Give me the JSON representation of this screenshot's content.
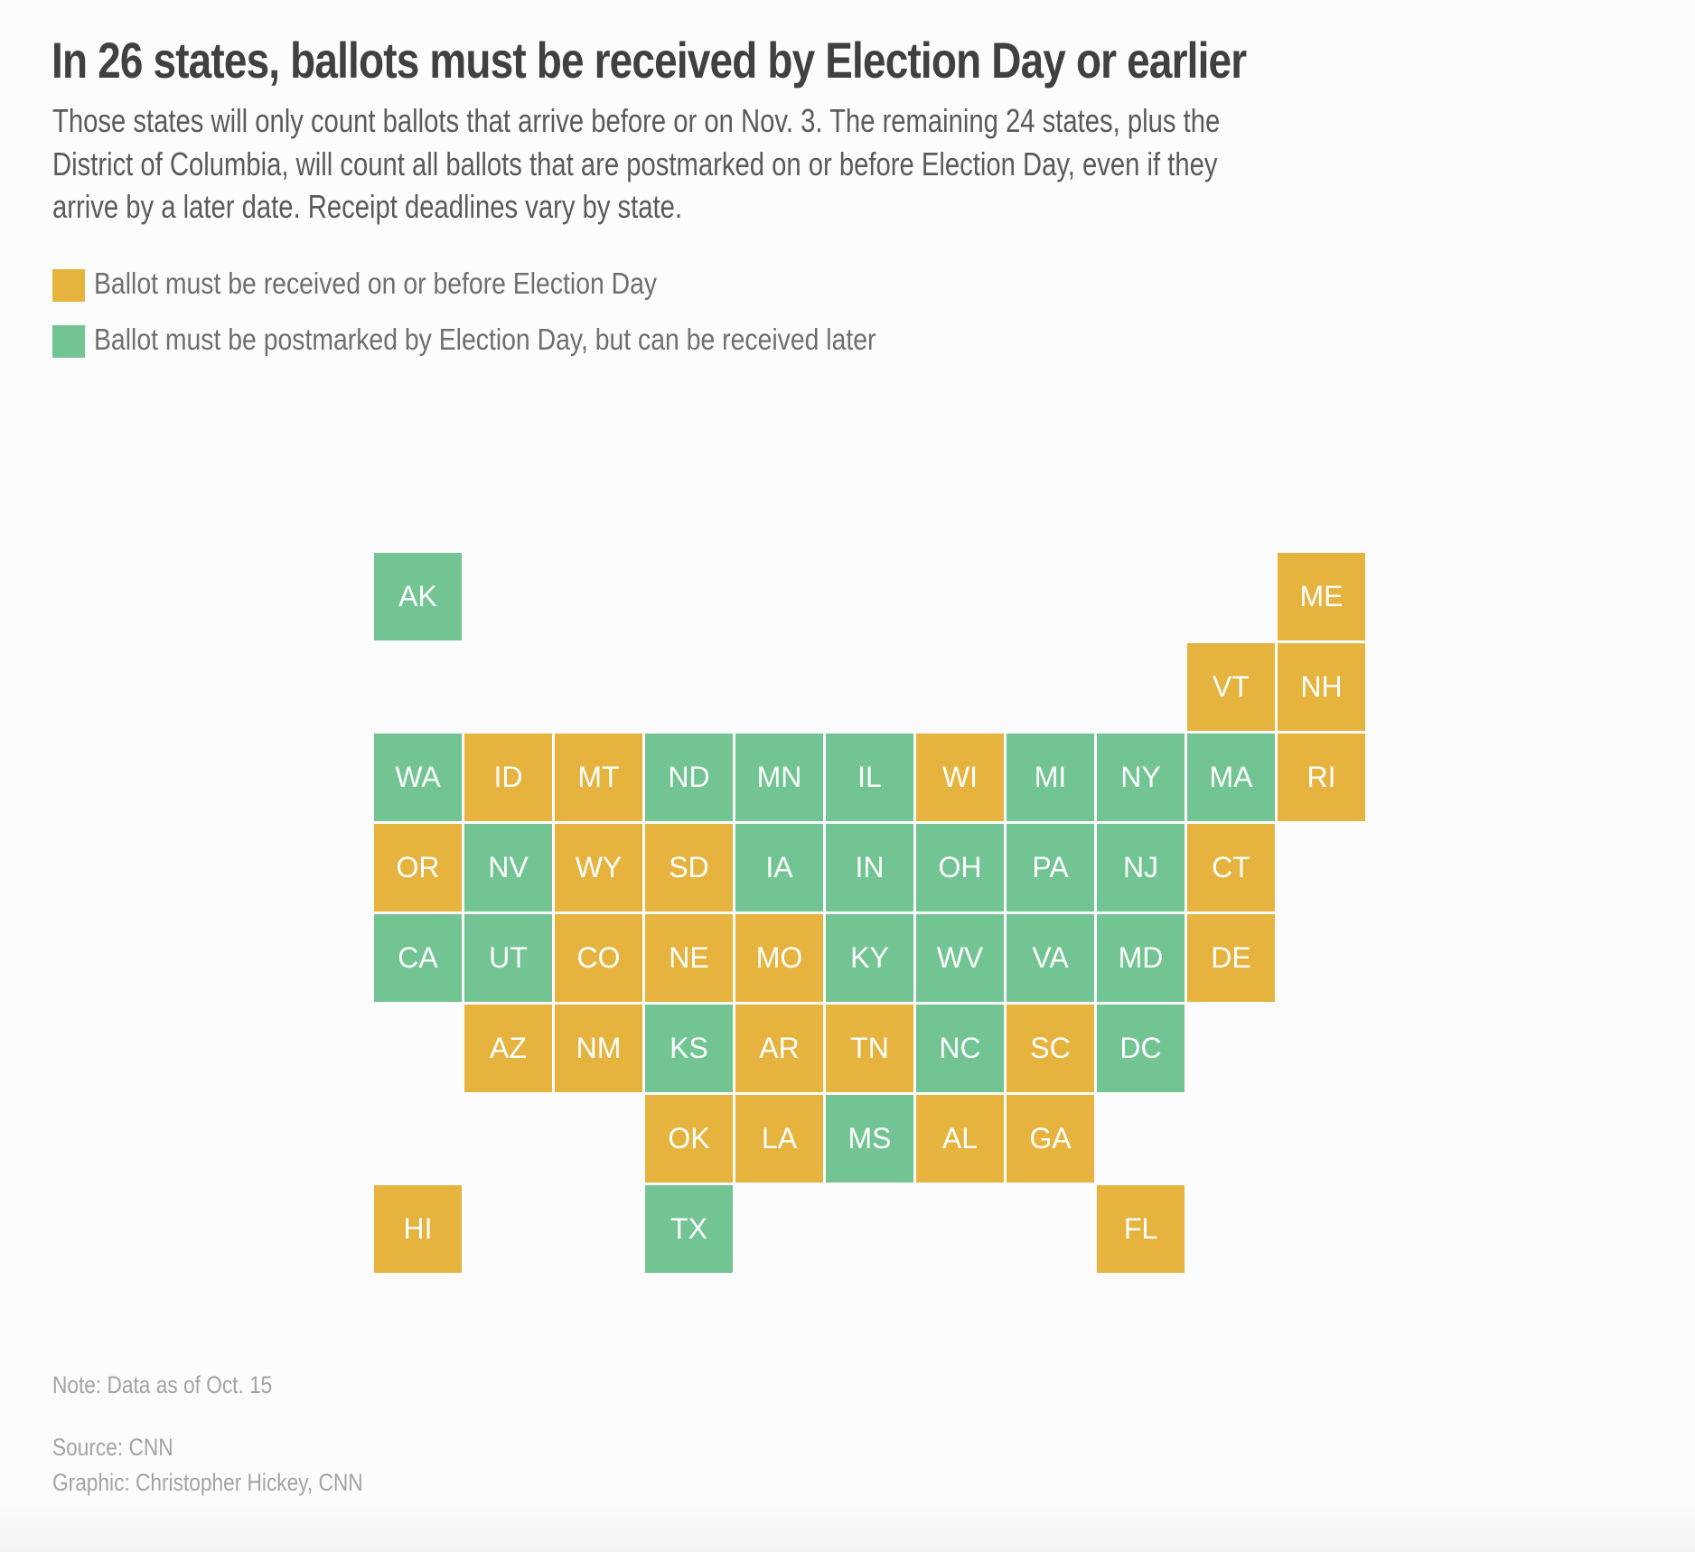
{
  "header": {
    "title": "In 26 states, ballots must be received by Election Day or earlier",
    "subtitle_lines": [
      "Those states will only count ballots that arrive before or on Nov. 3. The remaining 24 states, plus the",
      "District of Columbia, will count all ballots that are postmarked on or before Election Day, even if they",
      "arrive by a later date. Receipt deadlines vary by state."
    ]
  },
  "legend": [
    {
      "key": "received",
      "label": "Ballot must be received on or before Election Day",
      "color": "#E6B43E"
    },
    {
      "key": "postmarked",
      "label": "Ballot must be postmarked by Election Day, but can be received later",
      "color": "#72C593"
    }
  ],
  "chart_data": {
    "type": "tile-grid-map",
    "title": "In 26 states, ballots must be received by Election Day or earlier",
    "categories": [
      "received",
      "postmarked"
    ],
    "tiles": [
      {
        "state": "AK",
        "col": 0,
        "row": 0,
        "category": "postmarked"
      },
      {
        "state": "ME",
        "col": 10,
        "row": 0,
        "category": "received"
      },
      {
        "state": "VT",
        "col": 9,
        "row": 1,
        "category": "received"
      },
      {
        "state": "NH",
        "col": 10,
        "row": 1,
        "category": "received"
      },
      {
        "state": "WA",
        "col": 0,
        "row": 2,
        "category": "postmarked"
      },
      {
        "state": "ID",
        "col": 1,
        "row": 2,
        "category": "received"
      },
      {
        "state": "MT",
        "col": 2,
        "row": 2,
        "category": "received"
      },
      {
        "state": "ND",
        "col": 3,
        "row": 2,
        "category": "postmarked"
      },
      {
        "state": "MN",
        "col": 4,
        "row": 2,
        "category": "postmarked"
      },
      {
        "state": "IL",
        "col": 5,
        "row": 2,
        "category": "postmarked"
      },
      {
        "state": "WI",
        "col": 6,
        "row": 2,
        "category": "received"
      },
      {
        "state": "MI",
        "col": 7,
        "row": 2,
        "category": "postmarked"
      },
      {
        "state": "NY",
        "col": 8,
        "row": 2,
        "category": "postmarked"
      },
      {
        "state": "MA",
        "col": 9,
        "row": 2,
        "category": "postmarked"
      },
      {
        "state": "RI",
        "col": 10,
        "row": 2,
        "category": "received"
      },
      {
        "state": "OR",
        "col": 0,
        "row": 3,
        "category": "received"
      },
      {
        "state": "NV",
        "col": 1,
        "row": 3,
        "category": "postmarked"
      },
      {
        "state": "WY",
        "col": 2,
        "row": 3,
        "category": "received"
      },
      {
        "state": "SD",
        "col": 3,
        "row": 3,
        "category": "received"
      },
      {
        "state": "IA",
        "col": 4,
        "row": 3,
        "category": "postmarked"
      },
      {
        "state": "IN",
        "col": 5,
        "row": 3,
        "category": "postmarked"
      },
      {
        "state": "OH",
        "col": 6,
        "row": 3,
        "category": "postmarked"
      },
      {
        "state": "PA",
        "col": 7,
        "row": 3,
        "category": "postmarked"
      },
      {
        "state": "NJ",
        "col": 8,
        "row": 3,
        "category": "postmarked"
      },
      {
        "state": "CT",
        "col": 9,
        "row": 3,
        "category": "received"
      },
      {
        "state": "CA",
        "col": 0,
        "row": 4,
        "category": "postmarked"
      },
      {
        "state": "UT",
        "col": 1,
        "row": 4,
        "category": "postmarked"
      },
      {
        "state": "CO",
        "col": 2,
        "row": 4,
        "category": "received"
      },
      {
        "state": "NE",
        "col": 3,
        "row": 4,
        "category": "received"
      },
      {
        "state": "MO",
        "col": 4,
        "row": 4,
        "category": "received"
      },
      {
        "state": "KY",
        "col": 5,
        "row": 4,
        "category": "postmarked"
      },
      {
        "state": "WV",
        "col": 6,
        "row": 4,
        "category": "postmarked"
      },
      {
        "state": "VA",
        "col": 7,
        "row": 4,
        "category": "postmarked"
      },
      {
        "state": "MD",
        "col": 8,
        "row": 4,
        "category": "postmarked"
      },
      {
        "state": "DE",
        "col": 9,
        "row": 4,
        "category": "received"
      },
      {
        "state": "AZ",
        "col": 1,
        "row": 5,
        "category": "received"
      },
      {
        "state": "NM",
        "col": 2,
        "row": 5,
        "category": "received"
      },
      {
        "state": "KS",
        "col": 3,
        "row": 5,
        "category": "postmarked"
      },
      {
        "state": "AR",
        "col": 4,
        "row": 5,
        "category": "received"
      },
      {
        "state": "TN",
        "col": 5,
        "row": 5,
        "category": "received"
      },
      {
        "state": "NC",
        "col": 6,
        "row": 5,
        "category": "postmarked"
      },
      {
        "state": "SC",
        "col": 7,
        "row": 5,
        "category": "received"
      },
      {
        "state": "DC",
        "col": 8,
        "row": 5,
        "category": "postmarked"
      },
      {
        "state": "OK",
        "col": 3,
        "row": 6,
        "category": "received"
      },
      {
        "state": "LA",
        "col": 4,
        "row": 6,
        "category": "received"
      },
      {
        "state": "MS",
        "col": 5,
        "row": 6,
        "category": "postmarked"
      },
      {
        "state": "AL",
        "col": 6,
        "row": 6,
        "category": "received"
      },
      {
        "state": "GA",
        "col": 7,
        "row": 6,
        "category": "received"
      },
      {
        "state": "HI",
        "col": 0,
        "row": 7,
        "category": "received"
      },
      {
        "state": "TX",
        "col": 3,
        "row": 7,
        "category": "postmarked"
      },
      {
        "state": "FL",
        "col": 8,
        "row": 7,
        "category": "received"
      }
    ]
  },
  "footer": {
    "note": "Note: Data as of Oct. 15",
    "source": "Source: CNN",
    "credit": "Graphic: Christopher Hickey, CNN"
  }
}
